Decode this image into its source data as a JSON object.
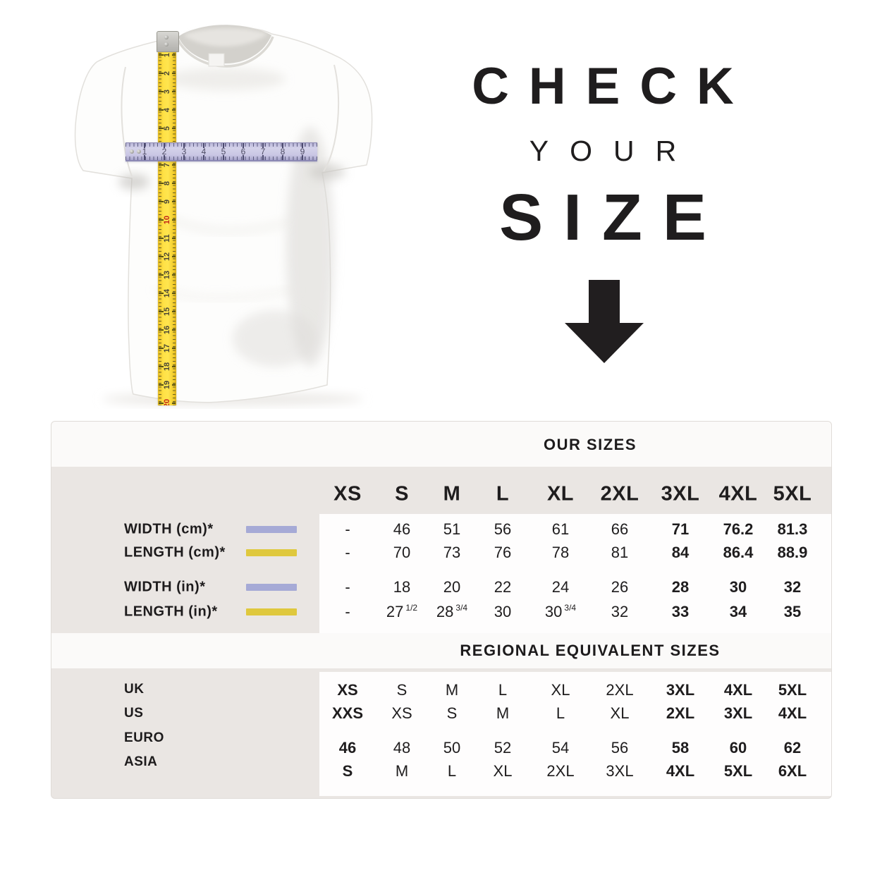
{
  "title": {
    "check": "CHECK",
    "your": "YOUR",
    "size": "SIZE"
  },
  "shirt": {
    "vertical_tape_numbers": [
      "1",
      "2",
      "3",
      "4",
      "5",
      "6",
      "7",
      "8",
      "9",
      "10",
      "11",
      "12",
      "13",
      "14",
      "15",
      "16",
      "17",
      "18",
      "19",
      "20"
    ],
    "vertical_tape_red_numbers": [
      "10",
      "20"
    ],
    "horizontal_ruler_numbers": [
      "1",
      "2",
      "3",
      "4",
      "5",
      "6",
      "7",
      "8",
      "9"
    ],
    "colors": {
      "tape_yellow": "#ffe145",
      "ruler_lavender": "#cac7e4"
    }
  },
  "table": {
    "colors": {
      "beige": "#eae6e3",
      "band_white": "#fbfaf9",
      "swatch_lavender": "#a6aad6",
      "swatch_yellow": "#dfc83d",
      "text": "#1f1d1e"
    },
    "section1": {
      "header": "OUR SIZES",
      "columns": [
        "XS",
        "S",
        "M",
        "L",
        "XL",
        "2XL",
        "3XL",
        "4XL",
        "5XL"
      ],
      "rows": [
        {
          "label": "WIDTH (cm)*",
          "swatch": "lavender",
          "values": [
            "-",
            "46",
            "51",
            "56",
            "61",
            "66",
            "71",
            "76.2",
            "81.3"
          ]
        },
        {
          "label": "LENGTH (cm)*",
          "swatch": "yellow",
          "values": [
            "-",
            "70",
            "73",
            "76",
            "78",
            "81",
            "84",
            "86.4",
            "88.9"
          ]
        },
        {
          "label": "WIDTH (in)*",
          "swatch": "lavender",
          "values": [
            "-",
            "18",
            "20",
            "22",
            "24",
            "26",
            "28",
            "30",
            "32"
          ]
        },
        {
          "label": "LENGTH (in)*",
          "swatch": "yellow",
          "values": [
            "-",
            {
              "v": "27",
              "sup": "1/2"
            },
            {
              "v": "28",
              "sup": "3/4"
            },
            "30",
            {
              "v": "30",
              "sup": "3/4"
            },
            "32",
            "33",
            "34",
            "35"
          ]
        }
      ],
      "bold_column_start_index": 6
    },
    "section2": {
      "header": "REGIONAL EQUIVALENT SIZES",
      "rows": [
        {
          "label": "UK",
          "values": [
            "XS",
            "S",
            "M",
            "L",
            "XL",
            "2XL",
            "3XL",
            "4XL",
            "5XL"
          ]
        },
        {
          "label": "US",
          "values": [
            "XXS",
            "XS",
            "S",
            "M",
            "L",
            "XL",
            "2XL",
            "3XL",
            "4XL"
          ]
        },
        {
          "label": "EURO",
          "values": [
            "46",
            "48",
            "50",
            "52",
            "54",
            "56",
            "58",
            "60",
            "62"
          ]
        },
        {
          "label": "ASIA",
          "values": [
            "S",
            "M",
            "L",
            "XL",
            "2XL",
            "3XL",
            "4XL",
            "5XL",
            "6XL"
          ]
        }
      ],
      "bold_first_column": true,
      "bold_column_start_index": 6
    }
  }
}
